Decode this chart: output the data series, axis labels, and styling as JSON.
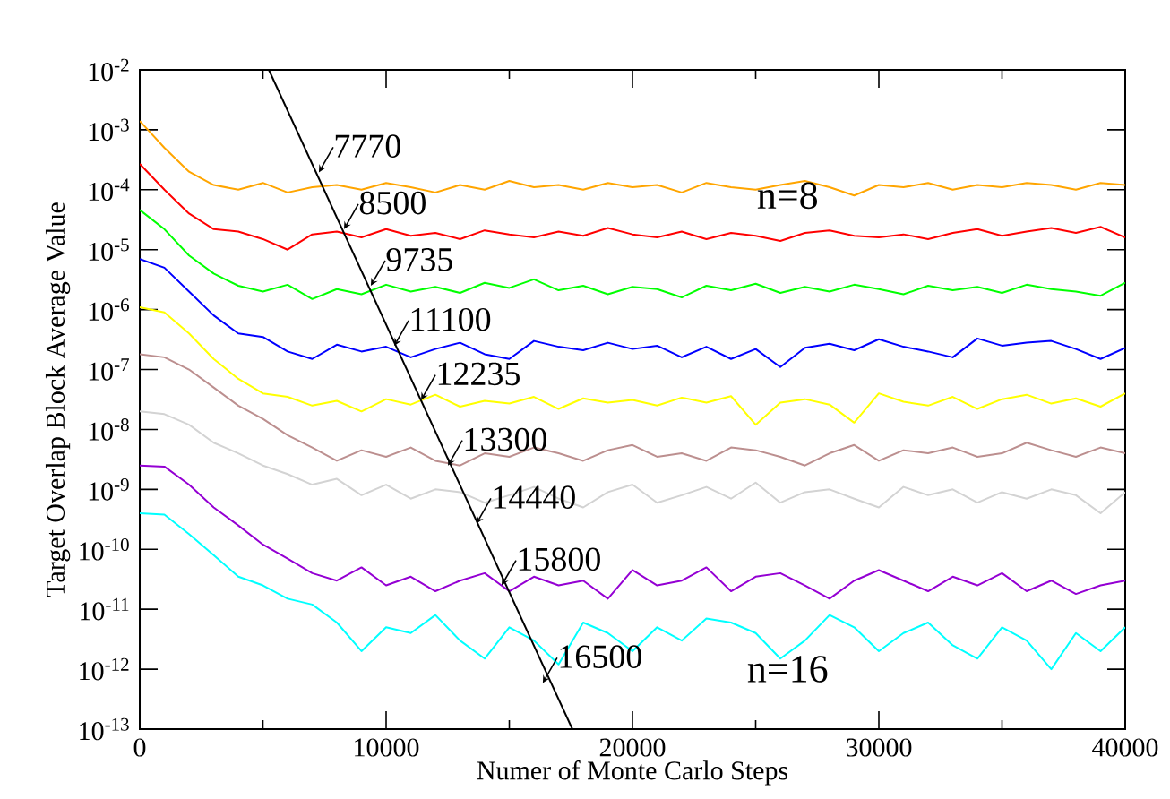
{
  "chart_data": {
    "type": "line",
    "xlabel": "Numer of Monte Carlo Steps",
    "ylabel": "Target Overlap Block Average Value",
    "log": "y",
    "grid": false,
    "xlim": [
      0,
      40000
    ],
    "ylim": [
      1e-13,
      0.01
    ],
    "xticks": [
      0,
      10000,
      20000,
      30000,
      40000
    ],
    "yticks": [
      {
        "value": 1e-13,
        "label": "10$^{-13}$"
      },
      {
        "value": 1e-12,
        "label": "10$^{-12}$"
      },
      {
        "value": 1e-11,
        "label": "10$^{-11}$"
      },
      {
        "value": 1e-10,
        "label": "10$^{-10}$"
      },
      {
        "value": 1e-09,
        "label": "10$^{-9}$"
      },
      {
        "value": 1e-08,
        "label": "10$^{-8}$"
      },
      {
        "value": 1e-07,
        "label": "10$^{-7}$"
      },
      {
        "value": 1e-06,
        "label": "10$^{-6}$"
      },
      {
        "value": 1e-05,
        "label": "10$^{-5}$"
      },
      {
        "value": 0.0001,
        "label": "10$^{-4}$"
      },
      {
        "value": 0.001,
        "label": "10$^{-3}$"
      },
      {
        "value": 0.01,
        "label": "10$^{-2}$"
      }
    ],
    "x": [
      0,
      1000,
      2000,
      3000,
      4000,
      5000,
      6000,
      7000,
      8000,
      9000,
      10000,
      11000,
      12000,
      13000,
      14000,
      15000,
      16000,
      17000,
      18000,
      19000,
      20000,
      21000,
      22000,
      23000,
      24000,
      25000,
      26000,
      27000,
      28000,
      29000,
      30000,
      31000,
      32000,
      33000,
      34000,
      35000,
      36000,
      37000,
      38000,
      39000,
      40000
    ],
    "series": [
      {
        "color": "#ffa500",
        "values": [
          0.0014,
          0.0005,
          0.0002,
          0.00012,
          0.0001,
          0.00013,
          9e-05,
          0.00011,
          0.00012,
          0.0001,
          0.00013,
          0.00011,
          9e-05,
          0.00012,
          0.0001,
          0.00014,
          0.00011,
          0.00012,
          0.0001,
          0.00013,
          0.00011,
          0.00012,
          9e-05,
          0.00013,
          0.00011,
          0.0001,
          0.00012,
          0.00014,
          0.00011,
          8e-05,
          0.00012,
          0.00011,
          0.00013,
          0.0001,
          0.00012,
          0.00011,
          0.00013,
          0.00012,
          0.0001,
          0.00013,
          0.00012
        ]
      },
      {
        "color": "#ff0000",
        "values": [
          0.00027,
          0.0001,
          4e-05,
          2.2e-05,
          2e-05,
          1.5e-05,
          1e-05,
          1.8e-05,
          2e-05,
          1.6e-05,
          2.2e-05,
          1.7e-05,
          1.9e-05,
          1.5e-05,
          2.1e-05,
          1.8e-05,
          1.6e-05,
          2e-05,
          1.7e-05,
          2.3e-05,
          1.8e-05,
          1.6e-05,
          2e-05,
          1.5e-05,
          1.9e-05,
          1.7e-05,
          1.4e-05,
          1.9e-05,
          2.1e-05,
          1.7e-05,
          1.6e-05,
          1.8e-05,
          1.5e-05,
          1.9e-05,
          2.2e-05,
          1.7e-05,
          2e-05,
          2.3e-05,
          1.9e-05,
          2.4e-05,
          1.6e-05
        ]
      },
      {
        "color": "#00ff00",
        "values": [
          4.6e-05,
          2.2e-05,
          8e-06,
          4e-06,
          2.5e-06,
          2e-06,
          2.6e-06,
          1.5e-06,
          2.2e-06,
          1.8e-06,
          2.6e-06,
          2e-06,
          2.4e-06,
          1.9e-06,
          2.8e-06,
          2.3e-06,
          3.2e-06,
          2.1e-06,
          2.5e-06,
          1.8e-06,
          2.4e-06,
          2.2e-06,
          1.6e-06,
          2.5e-06,
          2.1e-06,
          2.7e-06,
          1.9e-06,
          2.4e-06,
          2e-06,
          2.6e-06,
          2.2e-06,
          1.8e-06,
          2.5e-06,
          2.1e-06,
          2.4e-06,
          1.9e-06,
          2.6e-06,
          2.2e-06,
          2e-06,
          1.7e-06,
          2.8e-06
        ]
      },
      {
        "color": "#0000ff",
        "values": [
          7e-06,
          5e-06,
          2e-06,
          8e-07,
          4e-07,
          3.5e-07,
          2e-07,
          1.5e-07,
          2.6e-07,
          2e-07,
          2.4e-07,
          1.6e-07,
          2.2e-07,
          2.8e-07,
          1.8e-07,
          1.5e-07,
          3e-07,
          2.4e-07,
          2.1e-07,
          2.8e-07,
          2.2e-07,
          2.5e-07,
          1.6e-07,
          2.4e-07,
          1.5e-07,
          2.2e-07,
          1.1e-07,
          2.3e-07,
          2.7e-07,
          2.1e-07,
          3.2e-07,
          2.4e-07,
          2e-07,
          1.6e-07,
          3.3e-07,
          2.5e-07,
          2.8e-07,
          3e-07,
          2.2e-07,
          1.5e-07,
          2.3e-07
        ]
      },
      {
        "color": "#ffff00",
        "values": [
          1.1e-06,
          9e-07,
          4e-07,
          1.5e-07,
          7e-08,
          4e-08,
          3.5e-08,
          2.5e-08,
          3e-08,
          2e-08,
          3.2e-08,
          2.6e-08,
          3.8e-08,
          2.4e-08,
          3e-08,
          2.7e-08,
          3.5e-08,
          2.2e-08,
          3.3e-08,
          2.8e-08,
          3.1e-08,
          2.5e-08,
          3.4e-08,
          2.8e-08,
          3.6e-08,
          1.2e-08,
          2.8e-08,
          3.2e-08,
          2.6e-08,
          1.3e-08,
          4e-08,
          2.9e-08,
          2.5e-08,
          3.5e-08,
          2.2e-08,
          3.2e-08,
          3.8e-08,
          2.7e-08,
          3.3e-08,
          2.4e-08,
          4e-08
        ]
      },
      {
        "color": "#bc8f8f",
        "values": [
          1.8e-07,
          1.6e-07,
          1e-07,
          5e-08,
          2.5e-08,
          1.5e-08,
          8e-09,
          5e-09,
          3e-09,
          4.5e-09,
          3.5e-09,
          5e-09,
          3e-09,
          2.5e-09,
          4e-09,
          3.5e-09,
          5e-09,
          4e-09,
          3e-09,
          4.5e-09,
          5.5e-09,
          3.5e-09,
          4e-09,
          3e-09,
          5e-09,
          4.5e-09,
          3.5e-09,
          2.5e-09,
          4e-09,
          5.5e-09,
          3e-09,
          4.5e-09,
          4e-09,
          5e-09,
          3.5e-09,
          4e-09,
          6e-09,
          4.5e-09,
          3.5e-09,
          5e-09,
          4e-09
        ]
      },
      {
        "color": "#d3d3d3",
        "values": [
          2e-08,
          1.8e-08,
          1.2e-08,
          6e-09,
          4e-09,
          2.5e-09,
          1.8e-09,
          1.2e-09,
          1.5e-09,
          8e-10,
          1.2e-09,
          7e-10,
          1e-09,
          9e-10,
          6e-10,
          8e-10,
          1.1e-09,
          7e-10,
          5e-10,
          9e-10,
          1.2e-09,
          6e-10,
          8e-10,
          1.1e-09,
          7e-10,
          1.3e-09,
          6e-10,
          9e-10,
          1e-09,
          7e-10,
          5e-10,
          1.1e-09,
          8e-10,
          1e-09,
          6e-10,
          9e-10,
          7e-10,
          1e-09,
          8e-10,
          4e-10,
          9e-10
        ]
      },
      {
        "color": "#9400d3",
        "values": [
          2.5e-09,
          2.4e-09,
          1.2e-09,
          5e-10,
          2.5e-10,
          1.2e-10,
          7e-11,
          4e-11,
          3e-11,
          5e-11,
          2.5e-11,
          3.5e-11,
          2e-11,
          3e-11,
          4e-11,
          2e-11,
          3.5e-11,
          2.5e-11,
          3e-11,
          1.5e-11,
          4.5e-11,
          2.5e-11,
          3e-11,
          5e-11,
          2e-11,
          3.5e-11,
          4e-11,
          2.5e-11,
          1.5e-11,
          3e-11,
          4.5e-11,
          3e-11,
          2e-11,
          3.5e-11,
          2.5e-11,
          4e-11,
          2e-11,
          3e-11,
          1.8e-11,
          2.5e-11,
          3e-11
        ]
      },
      {
        "color": "#00ffff",
        "values": [
          4e-10,
          3.8e-10,
          1.8e-10,
          8e-11,
          3.5e-11,
          2.5e-11,
          1.5e-11,
          1.2e-11,
          6e-12,
          2e-12,
          5e-12,
          4e-12,
          8e-12,
          3e-12,
          1.5e-12,
          5e-12,
          3e-12,
          1.2e-12,
          6e-12,
          4e-12,
          2e-12,
          5e-12,
          3e-12,
          7e-12,
          6e-12,
          4e-12,
          1.5e-12,
          3e-12,
          8e-12,
          5e-12,
          2e-12,
          4e-12,
          6e-12,
          2.5e-12,
          1.5e-12,
          5e-12,
          3e-12,
          1e-12,
          4e-12,
          2e-12,
          5e-12
        ]
      },
      {
        "color": "#000000",
        "x": [
          5240,
          17560
        ],
        "values": [
          0.01,
          1e-13
        ]
      }
    ],
    "annotations": [
      {
        "text": "7770",
        "x": 7270,
        "y": 0.000195
      },
      {
        "text": "8500",
        "x": 8290,
        "y": 2.2e-05
      },
      {
        "text": "9735",
        "x": 9380,
        "y": 2.5e-06
      },
      {
        "text": "11100",
        "x": 10330,
        "y": 2.5e-07
      },
      {
        "text": "12235",
        "x": 11420,
        "y": 3.1e-08
      },
      {
        "text": "13300",
        "x": 12510,
        "y": 2.5e-09
      },
      {
        "text": "14440",
        "x": 13670,
        "y": 2.7e-10
      },
      {
        "text": "15800",
        "x": 14690,
        "y": 2.5e-11
      },
      {
        "text": "16500",
        "x": 16360,
        "y": 5.9e-13
      },
      "n=8",
      "n=16"
    ]
  }
}
